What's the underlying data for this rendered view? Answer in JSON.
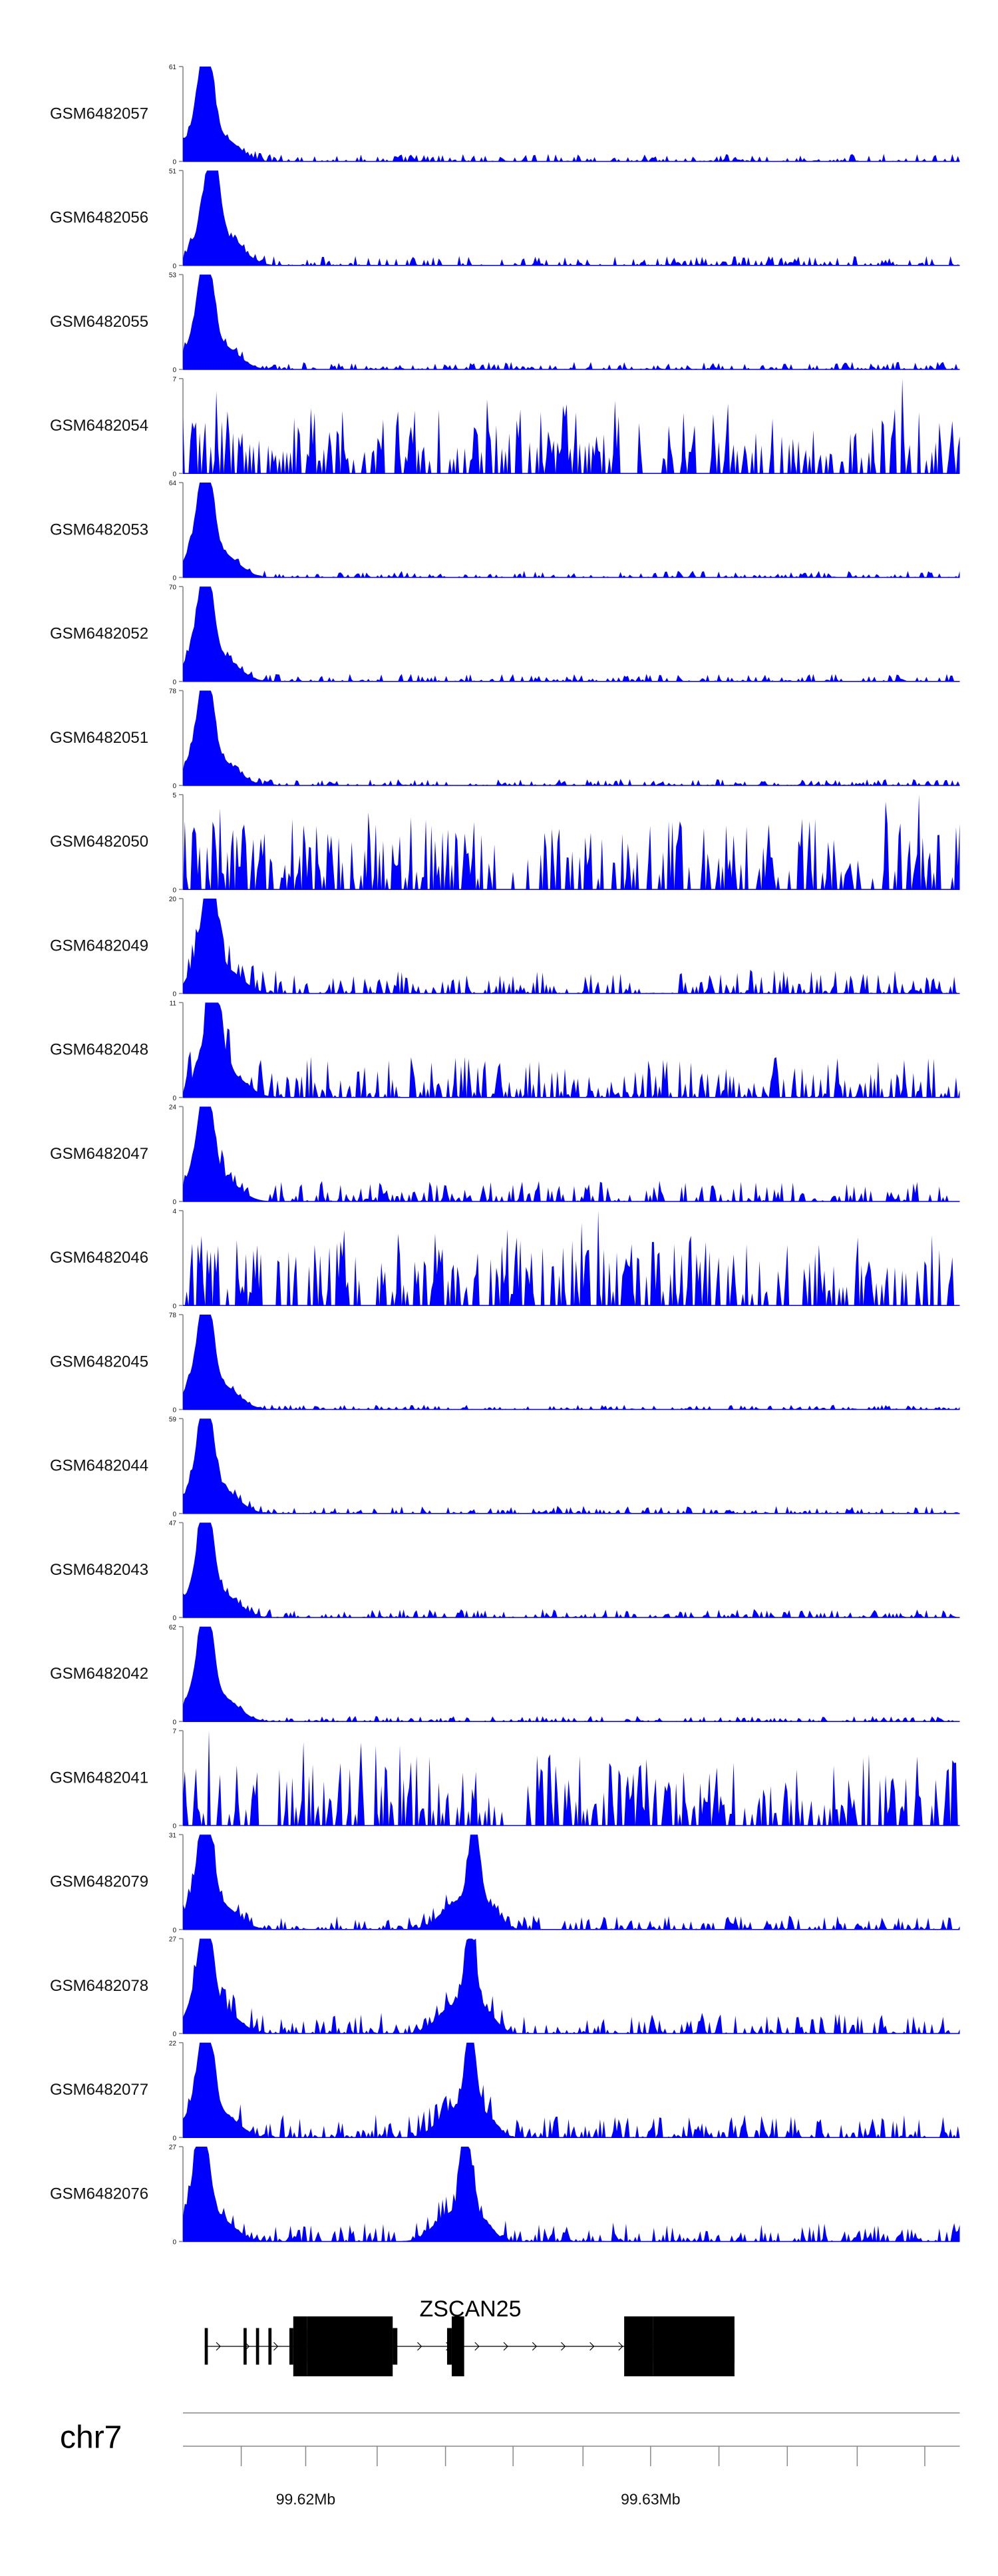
{
  "chart_data": {
    "type": "area",
    "title": "",
    "fill_color": "#0000ff",
    "axis_color": "#888888",
    "grid": false,
    "legend": "none",
    "tracks": [
      {
        "name": "GSM6482057",
        "ymax": 61,
        "ymin": 0,
        "profile": "early",
        "peak_at": 0.03,
        "noise": 0.08
      },
      {
        "name": "GSM6482056",
        "ymax": 51,
        "ymin": 0,
        "profile": "early",
        "peak_at": 0.038,
        "noise": 0.1
      },
      {
        "name": "GSM6482055",
        "ymax": 53,
        "ymin": 0,
        "profile": "early",
        "peak_at": 0.03,
        "noise": 0.08
      },
      {
        "name": "GSM6482054",
        "ymax": 7,
        "ymin": 0,
        "profile": "sparse",
        "noise": 0.9
      },
      {
        "name": "GSM6482053",
        "ymax": 64,
        "ymin": 0,
        "profile": "early",
        "peak_at": 0.03,
        "noise": 0.07
      },
      {
        "name": "GSM6482052",
        "ymax": 70,
        "ymin": 0,
        "profile": "early",
        "peak_at": 0.03,
        "noise": 0.08
      },
      {
        "name": "GSM6482051",
        "ymax": 78,
        "ymin": 0,
        "profile": "early",
        "peak_at": 0.03,
        "noise": 0.07
      },
      {
        "name": "GSM6482050",
        "ymax": 5,
        "ymin": 0,
        "profile": "sparse",
        "noise": 0.85
      },
      {
        "name": "GSM6482049",
        "ymax": 20,
        "ymin": 0,
        "profile": "early",
        "peak_at": 0.035,
        "noise": 0.25
      },
      {
        "name": "GSM6482048",
        "ymax": 11,
        "ymin": 0,
        "profile": "early",
        "peak_at": 0.04,
        "noise": 0.45
      },
      {
        "name": "GSM6482047",
        "ymax": 24,
        "ymin": 0,
        "profile": "early",
        "peak_at": 0.03,
        "noise": 0.22
      },
      {
        "name": "GSM6482046",
        "ymax": 4,
        "ymin": 0,
        "profile": "sparse",
        "noise": 0.95
      },
      {
        "name": "GSM6482045",
        "ymax": 78,
        "ymin": 0,
        "profile": "early",
        "peak_at": 0.03,
        "noise": 0.05
      },
      {
        "name": "GSM6482044",
        "ymax": 59,
        "ymin": 0,
        "profile": "early",
        "peak_at": 0.03,
        "noise": 0.08
      },
      {
        "name": "GSM6482043",
        "ymax": 47,
        "ymin": 0,
        "profile": "early",
        "peak_at": 0.03,
        "noise": 0.09
      },
      {
        "name": "GSM6482042",
        "ymax": 62,
        "ymin": 0,
        "profile": "early",
        "peak_at": 0.03,
        "noise": 0.06
      },
      {
        "name": "GSM6482041",
        "ymax": 7,
        "ymin": 0,
        "profile": "sparse",
        "noise": 0.6
      },
      {
        "name": "GSM6482079",
        "ymax": 31,
        "ymin": 0,
        "profile": "double",
        "peak_at": 0.03,
        "peak2_at": 0.375,
        "noise": 0.15
      },
      {
        "name": "GSM6482078",
        "ymax": 27,
        "ymin": 0,
        "profile": "double",
        "peak_at": 0.03,
        "peak2_at": 0.37,
        "noise": 0.22
      },
      {
        "name": "GSM6482077",
        "ymax": 22,
        "ymin": 0,
        "profile": "double",
        "peak_at": 0.03,
        "peak2_at": 0.37,
        "noise": 0.25
      },
      {
        "name": "GSM6482076",
        "ymax": 27,
        "ymin": 0,
        "profile": "double",
        "peak_at": 0.025,
        "peak2_at": 0.365,
        "noise": 0.2
      }
    ],
    "gene": {
      "name": "ZSCAN25",
      "strand": "+",
      "tx_start": 0.028,
      "tx_end": 0.71,
      "utr_blocks": [
        [
          0.028,
          0.032
        ],
        [
          0.078,
          0.082
        ],
        [
          0.094,
          0.098
        ],
        [
          0.11,
          0.114
        ],
        [
          0.137,
          0.142
        ],
        [
          0.34,
          0.346
        ]
      ],
      "exon_blocks": [
        [
          0.142,
          0.16
        ],
        [
          0.16,
          0.27
        ],
        [
          0.225,
          0.234
        ],
        [
          0.27,
          0.276
        ],
        [
          0.346,
          0.362
        ],
        [
          0.568,
          0.605
        ],
        [
          0.605,
          0.71
        ]
      ]
    },
    "axis": {
      "chrom": "chr7",
      "ticks": [
        {
          "pos": 0.158,
          "label": "99.62Mb"
        },
        {
          "pos": 0.602,
          "label": "99.63Mb"
        }
      ],
      "minor_ticks": [
        0.075,
        0.158,
        0.25,
        0.338,
        0.425,
        0.515,
        0.602,
        0.69,
        0.778,
        0.868,
        0.955
      ]
    }
  }
}
